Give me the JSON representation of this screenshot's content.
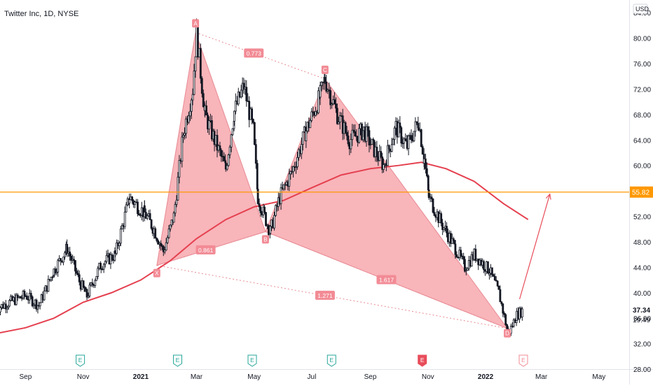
{
  "header": {
    "title": "Twitter Inc, 1D, NYSE"
  },
  "chart_data": {
    "type": "candlestick",
    "symbol": "Twitter Inc",
    "interval": "1D",
    "exchange": "NYSE",
    "currency": "USD",
    "ylim": [
      28,
      86
    ],
    "y_ticks": [
      28,
      32,
      36,
      40,
      44,
      48,
      52,
      56,
      60,
      64,
      68,
      72,
      76,
      80,
      84
    ],
    "y_tick_labels": [
      "28.00",
      "32.00",
      "36.00",
      "40.00",
      "44.00",
      "48.00",
      "52.00",
      "56.00",
      "60.00",
      "64.00",
      "68.00",
      "72.00",
      "76.00",
      "80.00",
      "84.00"
    ],
    "x_tick_labels": [
      "Sep",
      "Nov",
      "2021",
      "Mar",
      "May",
      "Jul",
      "Sep",
      "Nov",
      "2022",
      "Mar",
      "May"
    ],
    "x_tick_dates": [
      "2020-09-01",
      "2020-11-01",
      "2021-01-01",
      "2021-03-01",
      "2021-05-01",
      "2021-07-01",
      "2021-09-01",
      "2021-11-01",
      "2022-01-01",
      "2022-03-01",
      "2022-05-01"
    ],
    "last_price": "37.34",
    "countdown": "19:49",
    "horizontal_line": {
      "value": 55.82,
      "label": "55.82",
      "color": "#ff9800"
    },
    "close_series": [
      [
        "2020-08-01",
        37.5
      ],
      [
        "2020-08-15",
        38.5
      ],
      [
        "2020-09-01",
        39.6
      ],
      [
        "2020-09-15",
        38.0
      ],
      [
        "2020-10-01",
        43.5
      ],
      [
        "2020-10-15",
        47.0
      ],
      [
        "2020-10-28",
        41.8
      ],
      [
        "2020-11-05",
        39.5
      ],
      [
        "2020-11-20",
        44.5
      ],
      [
        "2020-12-05",
        46.0
      ],
      [
        "2020-12-20",
        55.0
      ],
      [
        "2021-01-05",
        52.5
      ],
      [
        "2021-01-15",
        50.0
      ],
      [
        "2021-01-25",
        46.5
      ],
      [
        "2021-02-05",
        52.0
      ],
      [
        "2021-02-15",
        65.0
      ],
      [
        "2021-02-25",
        72.0
      ],
      [
        "2021-03-01",
        80.8
      ],
      [
        "2021-03-10",
        68.0
      ],
      [
        "2021-03-20",
        64.0
      ],
      [
        "2021-04-01",
        59.5
      ],
      [
        "2021-04-10",
        68.5
      ],
      [
        "2021-04-20",
        72.5
      ],
      [
        "2021-04-30",
        65.5
      ],
      [
        "2021-05-05",
        55.0
      ],
      [
        "2021-05-12",
        52.0
      ],
      [
        "2021-05-18",
        49.6
      ],
      [
        "2021-05-28",
        55.0
      ],
      [
        "2021-06-10",
        59.0
      ],
      [
        "2021-06-25",
        65.5
      ],
      [
        "2021-07-10",
        71.0
      ],
      [
        "2021-07-15",
        73.6
      ],
      [
        "2021-07-28",
        68.0
      ],
      [
        "2021-08-10",
        64.0
      ],
      [
        "2021-08-25",
        65.5
      ],
      [
        "2021-09-05",
        62.5
      ],
      [
        "2021-09-15",
        60.0
      ],
      [
        "2021-09-28",
        66.0
      ],
      [
        "2021-10-10",
        63.0
      ],
      [
        "2021-10-22",
        67.0
      ],
      [
        "2021-10-28",
        61.0
      ],
      [
        "2021-11-02",
        55.0
      ],
      [
        "2021-11-15",
        51.0
      ],
      [
        "2021-11-30",
        47.0
      ],
      [
        "2021-12-10",
        44.0
      ],
      [
        "2021-12-20",
        46.0
      ],
      [
        "2022-01-05",
        43.5
      ],
      [
        "2022-01-15",
        40.0
      ],
      [
        "2022-01-25",
        33.5
      ],
      [
        "2022-02-03",
        36.5
      ],
      [
        "2022-02-10",
        37.34
      ]
    ],
    "moving_average": [
      [
        "2020-08-01",
        33.6
      ],
      [
        "2020-09-01",
        34.5
      ],
      [
        "2020-10-01",
        36.0
      ],
      [
        "2020-11-01",
        38.5
      ],
      [
        "2020-12-01",
        40.0
      ],
      [
        "2021-01-01",
        42.0
      ],
      [
        "2021-02-01",
        45.0
      ],
      [
        "2021-03-01",
        48.5
      ],
      [
        "2021-04-01",
        51.5
      ],
      [
        "2021-05-01",
        53.5
      ],
      [
        "2021-06-01",
        54.5
      ],
      [
        "2021-07-01",
        56.5
      ],
      [
        "2021-08-01",
        58.5
      ],
      [
        "2021-09-01",
        59.5
      ],
      [
        "2021-10-01",
        60.0
      ],
      [
        "2021-10-25",
        60.5
      ],
      [
        "2021-11-20",
        59.5
      ],
      [
        "2021-12-20",
        57.5
      ],
      [
        "2022-01-20",
        54.0
      ],
      [
        "2022-02-15",
        51.5
      ]
    ],
    "harmonic_pattern": {
      "points": [
        {
          "label": "X",
          "date": "2021-01-18",
          "price": 44.3
        },
        {
          "label": "A",
          "date": "2021-02-28",
          "price": 80.9
        },
        {
          "label": "B",
          "date": "2021-05-13",
          "price": 49.6
        },
        {
          "label": "C",
          "date": "2021-07-15",
          "price": 73.6
        },
        {
          "label": "D",
          "date": "2022-01-24",
          "price": 34.4
        }
      ],
      "ratios": [
        "0.773",
        "0.861",
        "1.617",
        "1.271"
      ],
      "fill_color": "#f7a8ae",
      "stroke_color": "#e88a93"
    },
    "projection_arrow": {
      "from": [
        "2022-02-06",
        39.0
      ],
      "to": [
        "2022-03-10",
        55.5
      ],
      "color": "#e84d5b"
    },
    "earnings_markers": [
      {
        "label": "E",
        "date": "2020-10-29",
        "kind": "reported"
      },
      {
        "label": "E",
        "date": "2021-02-09",
        "kind": "reported"
      },
      {
        "label": "E",
        "date": "2021-04-29",
        "kind": "reported"
      },
      {
        "label": "E",
        "date": "2021-07-22",
        "kind": "reported"
      },
      {
        "label": "E",
        "date": "2021-10-26",
        "kind": "missed"
      },
      {
        "label": "E",
        "date": "2022-02-10",
        "kind": "upcoming"
      }
    ],
    "colors": {
      "up": "#131722",
      "down": "#131722",
      "ma": "#e5404f",
      "arrow": "#e84d5b",
      "grid": "#f0f3fa"
    }
  }
}
